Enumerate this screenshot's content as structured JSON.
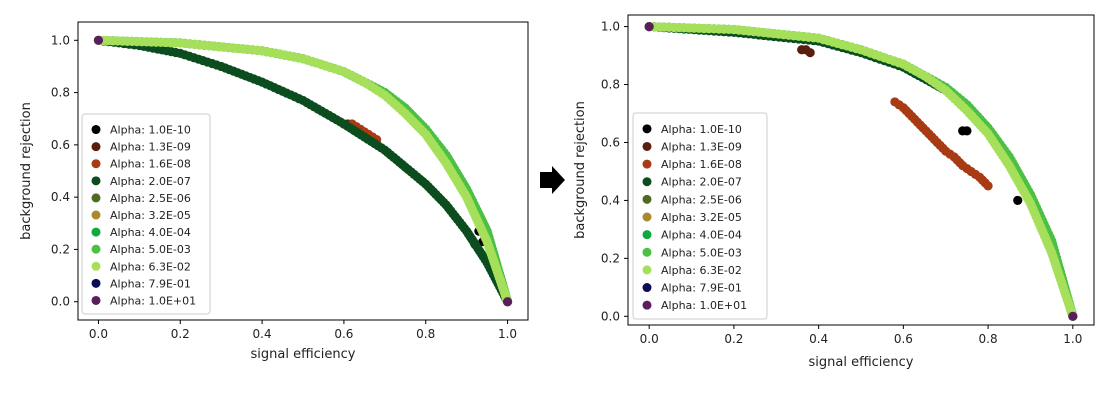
{
  "arrow_icon": "right-arrow-icon",
  "legend_entries": [
    {
      "label": "Alpha: 1.0E-10",
      "color": "#000000"
    },
    {
      "label": "Alpha: 1.3E-09",
      "color": "#5a1e0e"
    },
    {
      "label": "Alpha: 1.6E-08",
      "color": "#a83a14"
    },
    {
      "label": "Alpha: 2.0E-07",
      "color": "#0b4d1e"
    },
    {
      "label": "Alpha: 2.5E-06",
      "color": "#4d6b22"
    },
    {
      "label": "Alpha: 3.2E-05",
      "color": "#a88a2b"
    },
    {
      "label": "Alpha: 4.0E-04",
      "color": "#11a83c"
    },
    {
      "label": "Alpha: 5.0E-03",
      "color": "#4cc044"
    },
    {
      "label": "Alpha: 6.3E-02",
      "color": "#a6e05a"
    },
    {
      "label": "Alpha: 7.9E-01",
      "color": "#0d0d55"
    },
    {
      "label": "Alpha: 1.0E+01",
      "color": "#5a1e5e"
    }
  ],
  "chart_data": [
    {
      "type": "scatter",
      "xlabel": "signal efficiency",
      "ylabel": "background rejection",
      "xlim": [
        -0.05,
        1.05
      ],
      "ylim": [
        -0.07,
        1.07
      ],
      "xticks": [
        "0.0",
        "0.2",
        "0.4",
        "0.6",
        "0.8",
        "1.0"
      ],
      "yticks": [
        "0.0",
        "0.2",
        "0.4",
        "0.6",
        "0.8",
        "1.0"
      ],
      "legend_position": "lower-left",
      "series": [
        {
          "name": "Alpha: 1.0E-10",
          "x": [
            0.93,
            0.94
          ],
          "y": [
            0.27,
            0.23
          ]
        },
        {
          "name": "Alpha: 1.3E-09",
          "x": [
            0.6,
            0.61,
            0.92
          ],
          "y": [
            0.68,
            0.68,
            0.22
          ]
        },
        {
          "name": "Alpha: 1.6E-08",
          "x": [
            0.62,
            0.64,
            0.66,
            0.68
          ],
          "y": [
            0.68,
            0.66,
            0.64,
            0.62
          ]
        },
        {
          "name": "Alpha: 2.0E-07",
          "x": [
            0.0,
            0.1,
            0.2,
            0.3,
            0.4,
            0.5,
            0.6,
            0.7,
            0.8,
            0.85,
            0.9,
            0.95,
            1.0
          ],
          "y": [
            1.0,
            0.98,
            0.95,
            0.9,
            0.84,
            0.77,
            0.68,
            0.58,
            0.45,
            0.37,
            0.27,
            0.15,
            0.0
          ]
        },
        {
          "name": "Alpha: 4.0E-04",
          "x": [
            0.0,
            0.2,
            0.4,
            0.5,
            0.6,
            0.7,
            0.75,
            0.8,
            0.85,
            0.9,
            0.95,
            1.0
          ],
          "y": [
            1.0,
            0.99,
            0.96,
            0.93,
            0.88,
            0.8,
            0.74,
            0.66,
            0.56,
            0.43,
            0.27,
            0.0
          ]
        },
        {
          "name": "Alpha: 5.0E-03",
          "x": [
            0.0,
            0.2,
            0.4,
            0.5,
            0.6,
            0.7,
            0.75,
            0.8,
            0.85,
            0.9,
            0.95,
            1.0
          ],
          "y": [
            1.0,
            0.99,
            0.96,
            0.93,
            0.88,
            0.8,
            0.74,
            0.66,
            0.56,
            0.43,
            0.27,
            0.0
          ]
        },
        {
          "name": "Alpha: 6.3E-02",
          "x": [
            0.0,
            0.2,
            0.4,
            0.5,
            0.6,
            0.65,
            0.7,
            0.75,
            0.8,
            0.85,
            0.9,
            0.95,
            1.0
          ],
          "y": [
            1.0,
            0.99,
            0.96,
            0.93,
            0.88,
            0.84,
            0.79,
            0.72,
            0.64,
            0.53,
            0.4,
            0.23,
            0.0
          ]
        },
        {
          "name": "Alpha: 1.0E+01",
          "x": [
            0.0,
            1.0
          ],
          "y": [
            1.0,
            0.0
          ]
        }
      ]
    },
    {
      "type": "scatter",
      "xlabel": "signal efficiency",
      "ylabel": "background rejection",
      "xlim": [
        -0.05,
        1.05
      ],
      "ylim": [
        -0.03,
        1.04
      ],
      "xticks": [
        "0.0",
        "0.2",
        "0.4",
        "0.6",
        "0.8",
        "1.0"
      ],
      "yticks": [
        "0.0",
        "0.2",
        "0.4",
        "0.6",
        "0.8",
        "1.0"
      ],
      "legend_position": "lower-left",
      "series": [
        {
          "name": "Alpha: 1.0E-10",
          "x": [
            0.74,
            0.75,
            0.87
          ],
          "y": [
            0.64,
            0.64,
            0.4
          ]
        },
        {
          "name": "Alpha: 1.3E-09",
          "x": [
            0.36,
            0.37,
            0.38
          ],
          "y": [
            0.92,
            0.92,
            0.91
          ]
        },
        {
          "name": "Alpha: 1.6E-08",
          "x": [
            0.58,
            0.6,
            0.62,
            0.64,
            0.66,
            0.68,
            0.7,
            0.72,
            0.74,
            0.76,
            0.78,
            0.8
          ],
          "y": [
            0.74,
            0.72,
            0.69,
            0.66,
            0.63,
            0.6,
            0.57,
            0.55,
            0.52,
            0.5,
            0.48,
            0.45
          ]
        },
        {
          "name": "Alpha: 2.0E-07",
          "x": [
            0.0,
            0.2,
            0.4,
            0.5,
            0.6,
            0.7,
            0.75,
            0.8,
            0.85,
            0.9,
            0.95,
            1.0
          ],
          "y": [
            1.0,
            0.98,
            0.95,
            0.91,
            0.86,
            0.78,
            0.72,
            0.64,
            0.54,
            0.41,
            0.25,
            0.0
          ]
        },
        {
          "name": "Alpha: 4.0E-04",
          "x": [
            0.0,
            0.2,
            0.4,
            0.5,
            0.6,
            0.7,
            0.75,
            0.8,
            0.85,
            0.9,
            0.95,
            1.0
          ],
          "y": [
            1.0,
            0.99,
            0.96,
            0.92,
            0.87,
            0.79,
            0.73,
            0.65,
            0.55,
            0.42,
            0.26,
            0.0
          ]
        },
        {
          "name": "Alpha: 5.0E-03",
          "x": [
            0.0,
            0.2,
            0.4,
            0.5,
            0.6,
            0.7,
            0.75,
            0.8,
            0.85,
            0.9,
            0.95,
            1.0
          ],
          "y": [
            1.0,
            0.99,
            0.96,
            0.92,
            0.87,
            0.79,
            0.73,
            0.65,
            0.55,
            0.42,
            0.26,
            0.0
          ]
        },
        {
          "name": "Alpha: 6.3E-02",
          "x": [
            0.0,
            0.2,
            0.4,
            0.5,
            0.6,
            0.65,
            0.7,
            0.75,
            0.8,
            0.85,
            0.9,
            0.95,
            1.0
          ],
          "y": [
            1.0,
            0.99,
            0.96,
            0.92,
            0.87,
            0.83,
            0.78,
            0.71,
            0.63,
            0.52,
            0.39,
            0.22,
            0.0
          ]
        },
        {
          "name": "Alpha: 1.0E+01",
          "x": [
            0.0,
            1.0
          ],
          "y": [
            1.0,
            0.0
          ]
        }
      ]
    }
  ]
}
